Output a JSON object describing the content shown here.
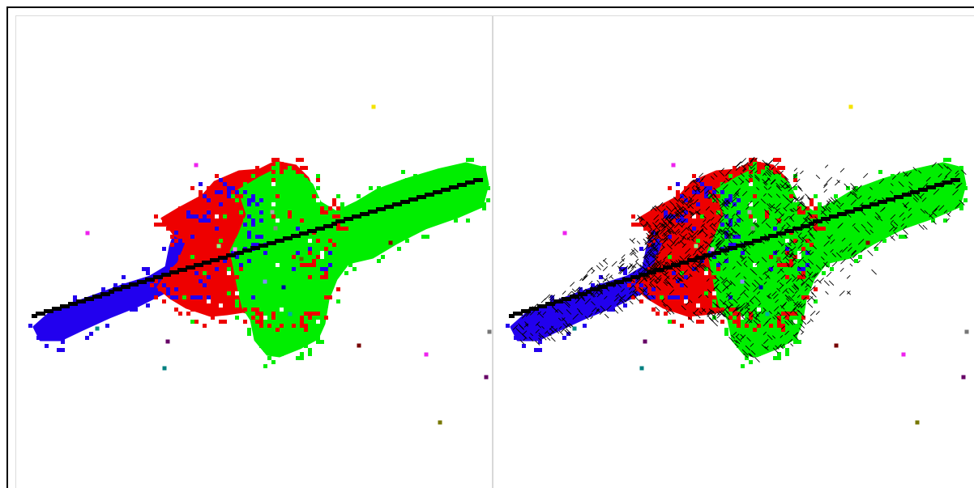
{
  "panels": [
    {
      "name": "left",
      "overlay": false
    },
    {
      "name": "right",
      "overlay": true
    }
  ],
  "colors": {
    "background": "#ffffff",
    "frame": "#000000",
    "divider": "#d8d8d8",
    "blue": "#2200ee",
    "red": "#ee0000",
    "green": "#00ee00",
    "line": "#000000",
    "hatch": "#000000"
  }
}
